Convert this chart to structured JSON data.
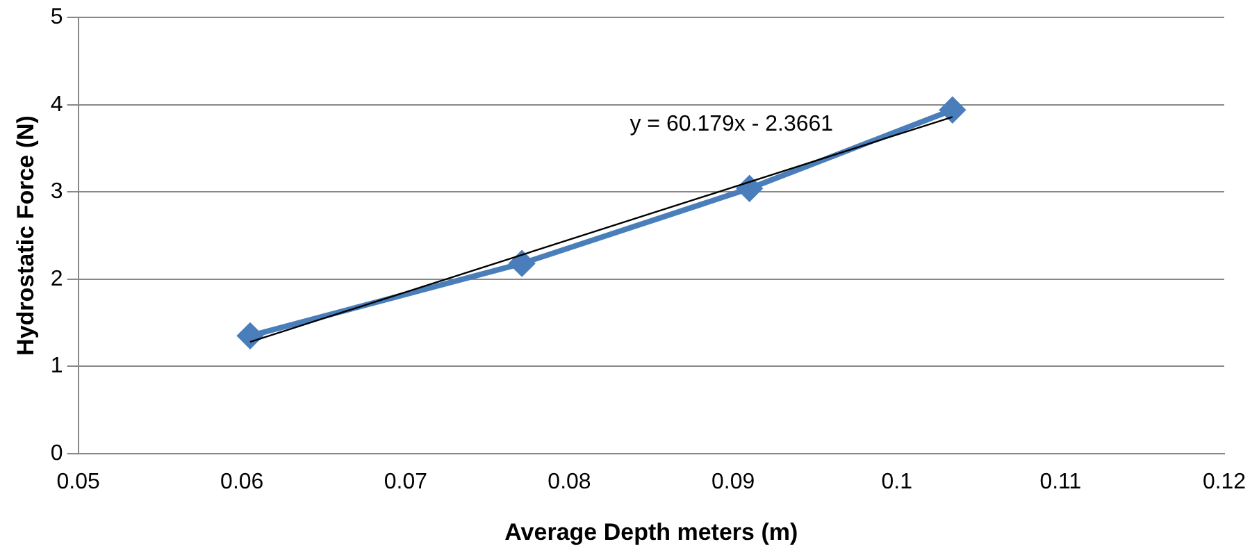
{
  "chart_data": {
    "type": "line",
    "xlabel": "Average Depth meters (m)",
    "ylabel": "Hydrostatic Force (N)",
    "series": [
      {
        "color": "#4a7ebb",
        "x": [
          0.0605,
          0.0771,
          0.091,
          0.1034
        ],
        "values": [
          1.35,
          2.18,
          3.04,
          3.94
        ],
        "marker": "diamond"
      },
      {
        "type": "line",
        "color": "#000000",
        "x": [
          0.0605,
          0.1034
        ],
        "values": [
          1.28,
          3.86
        ],
        "marker": "none"
      }
    ],
    "xlim": [
      0.05,
      0.12
    ],
    "xticks": [
      0.05,
      0.06,
      0.07,
      0.08,
      0.09,
      0.1,
      0.11,
      0.12
    ],
    "ylim": [
      0,
      5
    ],
    "yticks": [
      0,
      1,
      2,
      3,
      4,
      5
    ],
    "grid": "y",
    "legend": false,
    "annotations": [
      "y = 60.179x - 2.3661"
    ]
  }
}
